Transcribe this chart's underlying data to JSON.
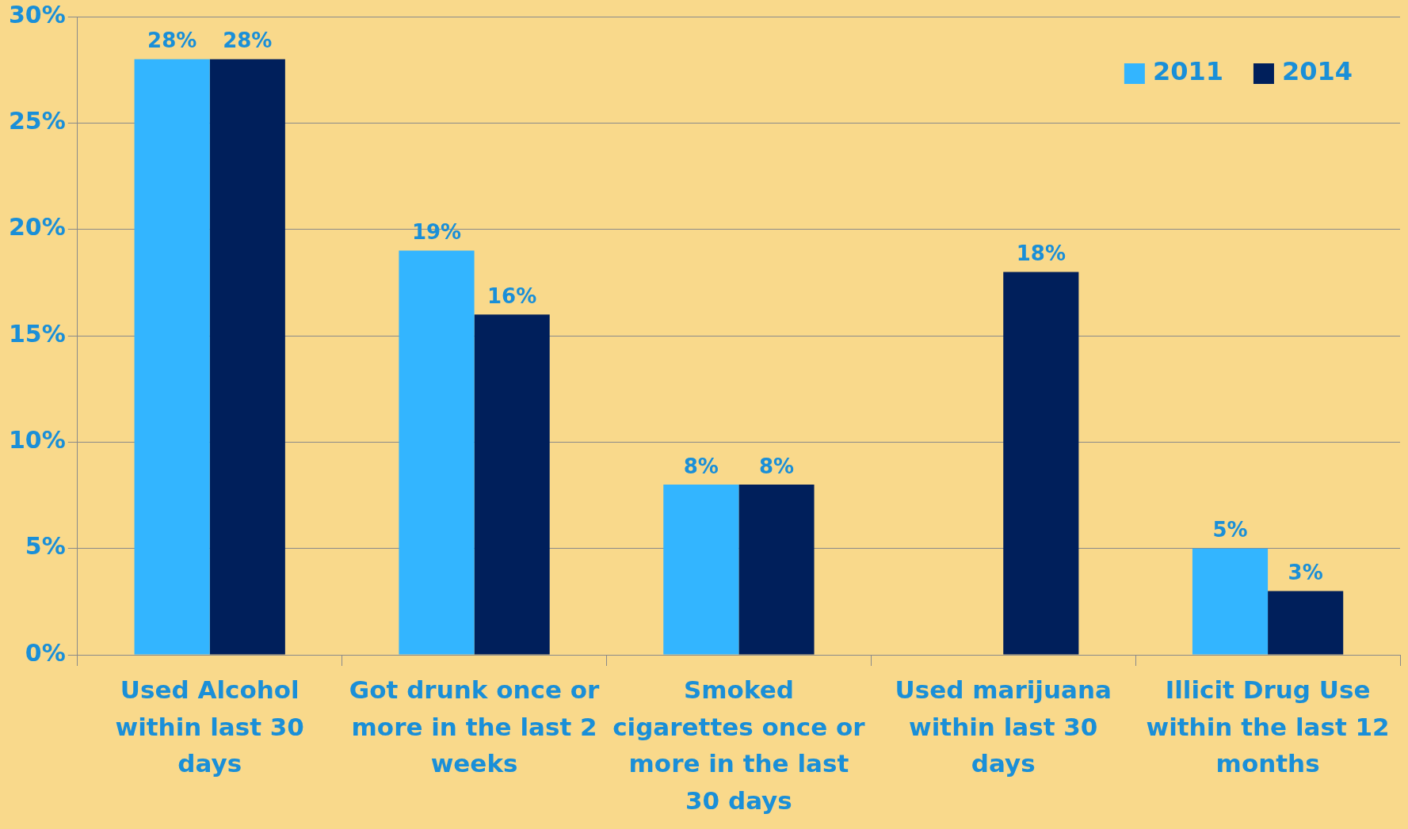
{
  "chart_data": {
    "type": "bar",
    "categories": [
      "Used Alcohol within last 30 days",
      "Got drunk once or more in the last 2 weeks",
      "Smoked cigarettes once or more in the last 30 days",
      "Used marijuana within last 30 days",
      "Illicit Drug Use within the last 12 months"
    ],
    "series": [
      {
        "name": "2011",
        "color": "#33b5ff",
        "values": [
          28,
          19,
          8,
          null,
          5
        ],
        "value_labels": [
          "28%",
          "19%",
          "8%",
          null,
          "5%"
        ]
      },
      {
        "name": "2014",
        "color": "#001f5b",
        "values": [
          28,
          16,
          8,
          18,
          3
        ],
        "value_labels": [
          "28%",
          "16%",
          "8%",
          "18%",
          "3%"
        ]
      }
    ],
    "ylim": [
      0,
      30
    ],
    "yticks": [
      {
        "value": 0,
        "label": "0%"
      },
      {
        "value": 5,
        "label": "5%"
      },
      {
        "value": 10,
        "label": "10%"
      },
      {
        "value": 15,
        "label": "15%"
      },
      {
        "value": 20,
        "label": "20%"
      },
      {
        "value": 25,
        "label": "25%"
      },
      {
        "value": 30,
        "label": "30%"
      }
    ],
    "grid": "y",
    "legend": "top right"
  }
}
